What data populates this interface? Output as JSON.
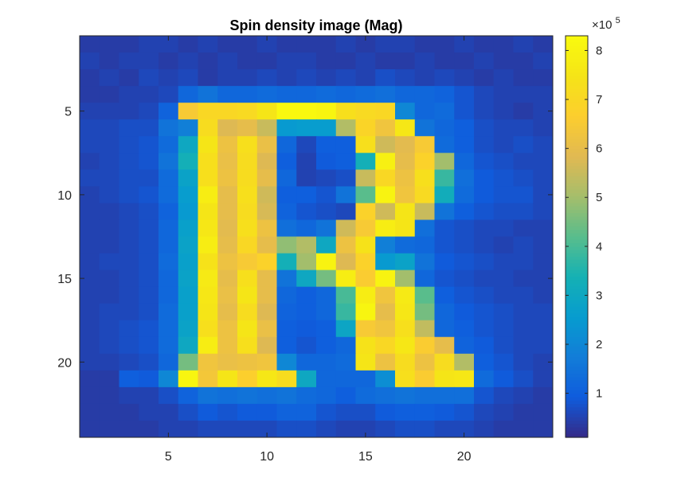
{
  "chart_data": {
    "type": "heatmap",
    "title": "Spin density image (Mag)",
    "xlabel": "",
    "ylabel": "",
    "x_range": [
      1,
      24
    ],
    "y_range": [
      1,
      24
    ],
    "y_direction": "reverse",
    "x_ticks": [
      5,
      10,
      15,
      20
    ],
    "y_ticks": [
      5,
      10,
      15,
      20
    ],
    "colormap": "parula",
    "colorbar": {
      "ticks": [
        1,
        2,
        3,
        4,
        5,
        6,
        7,
        8
      ],
      "tick_labels": [
        "1",
        "2",
        "3",
        "4",
        "5",
        "6",
        "7",
        "8"
      ],
      "multiplier_base": "×10",
      "multiplier_exp": "5",
      "range": [
        0.1,
        8.3
      ]
    },
    "values_units": "x1e5",
    "values": [
      [
        0.4,
        0.4,
        0.4,
        0.5,
        0.5,
        0.4,
        0.5,
        0.4,
        0.4,
        0.5,
        0.4,
        0.4,
        0.4,
        0.5,
        0.4,
        0.5,
        0.5,
        0.4,
        0.4,
        0.5,
        0.4,
        0.4,
        0.5,
        0.4
      ],
      [
        0.5,
        0.4,
        0.5,
        0.5,
        0.4,
        0.5,
        0.4,
        0.5,
        0.4,
        0.4,
        0.5,
        0.5,
        0.4,
        0.4,
        0.5,
        0.4,
        0.4,
        0.5,
        0.4,
        0.4,
        0.5,
        0.4,
        0.4,
        0.5
      ],
      [
        0.4,
        0.5,
        0.4,
        0.6,
        0.5,
        0.6,
        0.4,
        0.5,
        0.5,
        0.6,
        0.5,
        0.6,
        0.5,
        0.6,
        0.5,
        0.7,
        0.6,
        0.5,
        0.6,
        0.5,
        0.4,
        0.5,
        0.4,
        0.4
      ],
      [
        0.4,
        0.4,
        0.5,
        0.5,
        0.6,
        1.2,
        1.5,
        1.2,
        1.2,
        1.3,
        1.2,
        1.2,
        1.3,
        1.2,
        1.3,
        1.4,
        1.2,
        1.2,
        1.1,
        0.8,
        0.6,
        0.5,
        0.5,
        0.5
      ],
      [
        0.5,
        0.5,
        0.5,
        0.6,
        1.1,
        6.5,
        7.0,
        7.0,
        7.1,
        7.5,
        8.2,
        8.2,
        8.1,
        7.3,
        7.1,
        7.0,
        2.0,
        1.2,
        1.3,
        0.8,
        0.6,
        0.5,
        0.4,
        0.5
      ],
      [
        0.6,
        0.6,
        0.7,
        0.7,
        1.5,
        1.8,
        7.2,
        5.8,
        6.0,
        5.5,
        2.5,
        2.6,
        2.6,
        5.2,
        6.9,
        6.3,
        7.6,
        1.5,
        1.2,
        1.0,
        0.7,
        0.6,
        0.6,
        0.5
      ],
      [
        0.6,
        0.6,
        0.7,
        0.8,
        1.3,
        3.0,
        7.5,
        6.2,
        7.3,
        6.1,
        1.2,
        0.6,
        1.0,
        1.0,
        7.3,
        5.6,
        5.9,
        6.5,
        1.3,
        1.0,
        0.7,
        0.6,
        0.7,
        0.6
      ],
      [
        0.5,
        0.6,
        0.7,
        0.8,
        1.5,
        3.3,
        7.3,
        6.1,
        7.2,
        5.8,
        1.0,
        0.5,
        0.9,
        1.0,
        3.3,
        7.9,
        6.0,
        6.8,
        5.0,
        1.2,
        0.8,
        0.7,
        0.6,
        0.6
      ],
      [
        0.6,
        0.6,
        0.7,
        0.7,
        1.3,
        2.8,
        7.3,
        6.2,
        7.2,
        6.0,
        1.2,
        0.5,
        0.6,
        0.7,
        5.5,
        7.0,
        6.2,
        7.3,
        3.8,
        1.4,
        0.9,
        0.8,
        0.7,
        0.6
      ],
      [
        0.5,
        0.6,
        0.7,
        0.8,
        1.3,
        2.6,
        7.8,
        6.0,
        7.3,
        5.6,
        1.0,
        1.0,
        0.8,
        1.5,
        4.2,
        8.0,
        6.3,
        7.1,
        3.2,
        1.3,
        0.9,
        0.8,
        0.8,
        0.6
      ],
      [
        0.5,
        0.5,
        0.6,
        0.7,
        1.1,
        2.5,
        7.5,
        6.0,
        7.2,
        5.7,
        1.1,
        0.8,
        0.7,
        0.6,
        6.8,
        5.6,
        7.5,
        5.5,
        1.5,
        1.0,
        0.8,
        0.7,
        0.7,
        0.6
      ],
      [
        0.5,
        0.5,
        0.6,
        0.7,
        1.2,
        2.7,
        7.6,
        5.9,
        7.3,
        6.2,
        1.4,
        1.2,
        1.5,
        5.6,
        6.5,
        7.8,
        7.5,
        1.4,
        0.8,
        0.7,
        0.6,
        0.6,
        0.5,
        0.5
      ],
      [
        0.5,
        0.5,
        0.6,
        0.7,
        1.2,
        2.8,
        7.8,
        6.0,
        7.0,
        6.0,
        4.8,
        5.2,
        3.0,
        6.2,
        7.4,
        1.8,
        1.3,
        1.2,
        0.8,
        0.7,
        0.6,
        0.5,
        0.6,
        0.5
      ],
      [
        0.5,
        0.6,
        0.6,
        0.7,
        1.3,
        2.7,
        7.4,
        6.2,
        6.5,
        6.8,
        3.3,
        5.0,
        8.0,
        5.8,
        6.8,
        2.5,
        2.8,
        1.5,
        0.9,
        0.8,
        0.7,
        0.6,
        0.6,
        0.5
      ],
      [
        0.5,
        0.5,
        0.6,
        0.7,
        1.2,
        2.8,
        7.7,
        6.0,
        7.3,
        6.0,
        1.5,
        3.0,
        4.5,
        7.8,
        6.6,
        8.0,
        5.0,
        1.2,
        0.8,
        0.7,
        0.6,
        0.6,
        0.5,
        0.5
      ],
      [
        0.5,
        0.5,
        0.6,
        0.7,
        1.2,
        2.7,
        7.6,
        6.1,
        7.5,
        6.0,
        1.2,
        1.0,
        1.2,
        4.0,
        7.8,
        6.3,
        7.7,
        4.2,
        1.0,
        0.8,
        0.7,
        0.6,
        0.6,
        0.5
      ],
      [
        0.5,
        0.6,
        0.6,
        0.7,
        1.3,
        2.7,
        7.5,
        6.0,
        7.2,
        5.8,
        1.1,
        1.0,
        1.2,
        3.8,
        8.1,
        6.0,
        7.6,
        4.5,
        1.2,
        0.9,
        0.8,
        0.7,
        0.6,
        0.6
      ],
      [
        0.5,
        0.6,
        0.7,
        0.8,
        1.3,
        2.8,
        7.3,
        6.2,
        7.5,
        6.1,
        1.0,
        0.9,
        1.0,
        2.9,
        6.5,
        6.3,
        7.3,
        5.4,
        1.2,
        1.0,
        0.8,
        0.7,
        0.6,
        0.6
      ],
      [
        0.5,
        0.6,
        0.7,
        0.8,
        1.3,
        3.0,
        7.8,
        6.2,
        7.3,
        5.8,
        1.0,
        0.8,
        1.0,
        1.2,
        7.4,
        7.0,
        7.6,
        6.6,
        6.0,
        1.1,
        0.9,
        0.7,
        0.6,
        0.6
      ],
      [
        0.5,
        0.5,
        0.6,
        0.7,
        1.2,
        4.5,
        6.3,
        6.1,
        6.2,
        6.3,
        2.0,
        1.2,
        1.2,
        1.3,
        7.5,
        6.2,
        7.2,
        6.2,
        7.2,
        5.2,
        1.0,
        0.8,
        0.6,
        0.5
      ],
      [
        0.4,
        0.4,
        1.0,
        0.9,
        2.0,
        8.1,
        6.4,
        7.5,
        6.7,
        7.6,
        7.2,
        3.0,
        1.2,
        1.2,
        1.2,
        2.2,
        7.3,
        6.6,
        7.5,
        7.6,
        1.3,
        0.9,
        0.7,
        0.5
      ],
      [
        0.4,
        0.4,
        0.5,
        0.5,
        0.7,
        1.1,
        1.5,
        1.4,
        1.5,
        1.4,
        1.5,
        1.3,
        1.2,
        1.0,
        1.3,
        1.4,
        1.5,
        1.4,
        1.4,
        1.4,
        0.8,
        0.6,
        0.5,
        0.4
      ],
      [
        0.4,
        0.4,
        0.4,
        0.5,
        0.5,
        0.7,
        0.9,
        0.8,
        0.9,
        0.9,
        1.1,
        1.1,
        0.8,
        0.7,
        0.7,
        0.9,
        1.0,
        1.0,
        0.9,
        0.8,
        0.6,
        0.5,
        0.4,
        0.4
      ],
      [
        0.4,
        0.4,
        0.4,
        0.4,
        0.5,
        0.5,
        0.6,
        0.6,
        0.6,
        0.6,
        0.7,
        0.7,
        0.6,
        0.5,
        0.5,
        0.6,
        0.7,
        0.7,
        0.6,
        0.6,
        0.5,
        0.4,
        0.4,
        0.4
      ]
    ]
  }
}
